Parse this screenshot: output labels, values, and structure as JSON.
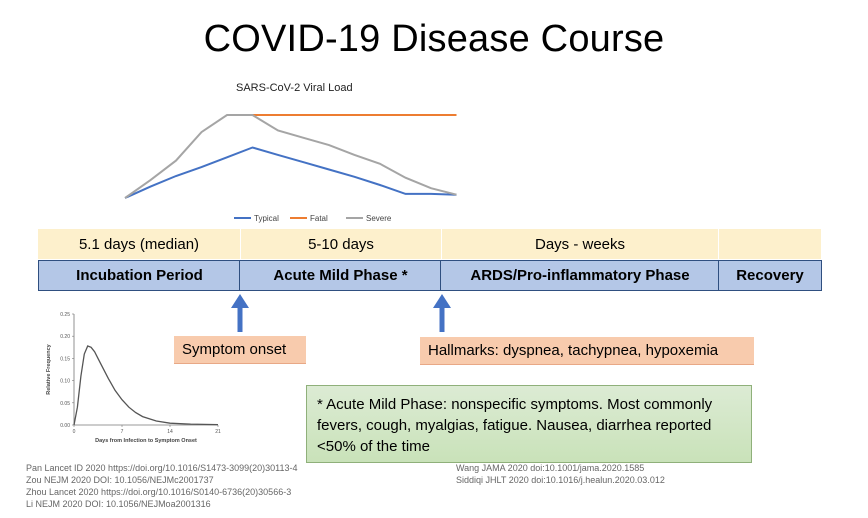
{
  "title": "COVID-19 Disease Course",
  "viral_load_chart": {
    "type": "line",
    "title": "SARS-CoV-2 Viral Load",
    "series": [
      {
        "name": "Typical",
        "color": "#4472c4",
        "values": [
          0,
          1.4,
          2.7,
          3.8,
          5.0,
          6.2,
          5.3,
          4.4,
          3.5,
          2.6,
          1.6,
          0.5,
          0.5,
          0.4
        ]
      },
      {
        "name": "Fatal",
        "color": "#ed7d31",
        "values": [
          null,
          null,
          null,
          null,
          10.2,
          10.2,
          10.2,
          10.2,
          10.2,
          10.2,
          10.2,
          10.2,
          10.2,
          10.2
        ]
      },
      {
        "name": "Severe",
        "color": "#a5a5a5",
        "values": [
          0,
          2.2,
          4.6,
          8.1,
          10.2,
          10.2,
          8.3,
          7.4,
          6.5,
          5.3,
          4.2,
          2.5,
          1.2,
          0.4
        ]
      }
    ]
  },
  "durations": [
    "5.1 days (median)",
    "5-10 days",
    "Days - weeks",
    ""
  ],
  "phases": [
    "Incubation Period",
    "Acute Mild Phase *",
    "ARDS/Pro-inflammatory Phase",
    "Recovery"
  ],
  "callouts": {
    "onset": "Symptom onset",
    "hallmarks": "Hallmarks: dyspnea, tachypnea, hypoxemia"
  },
  "note": "* Acute Mild Phase: nonspecific symptoms. Most commonly fevers, cough, myalgias, fatigue. Nausea, diarrhea reported <50% of the time",
  "incubation_chart": {
    "type": "line",
    "ylabel": "Relative Frequency",
    "xlabel": "Days from Infection to Symptom Onset",
    "x_ticks": [
      "0",
      "7",
      "14",
      "21"
    ],
    "y_ticks": [
      "0.00",
      "0.05",
      "0.10",
      "0.15",
      "0.20",
      "0.25"
    ],
    "xlim": [
      0,
      21
    ],
    "ylim": [
      0,
      0.25
    ],
    "x": [
      0,
      0.5,
      1,
      1.5,
      2,
      2.5,
      3,
      3.5,
      4,
      5,
      6,
      7,
      8,
      9,
      10,
      12,
      14,
      17,
      21
    ],
    "y": [
      0,
      0.04,
      0.11,
      0.16,
      0.178,
      0.175,
      0.165,
      0.15,
      0.135,
      0.105,
      0.078,
      0.057,
      0.04,
      0.028,
      0.019,
      0.009,
      0.004,
      0.002,
      0.001
    ],
    "color": "#555555"
  },
  "references_left": [
    "Pan Lancet ID 2020 https://doi.org/10.1016/S1473-3099(20)30113-4",
    "Zou NEJM 2020 DOI: 10.1056/NEJMc2001737",
    "Zhou Lancet 2020 https://doi.org/10.1016/S0140-6736(20)30566-3",
    "Li NEJM 2020 DOI: 10.1056/NEJMoa2001316"
  ],
  "references_right": [
    "Wang JAMA 2020 doi:10.1001/jama.2020.1585",
    "Siddiqi JHLT 2020 doi:10.1016/j.healun.2020.03.012"
  ]
}
